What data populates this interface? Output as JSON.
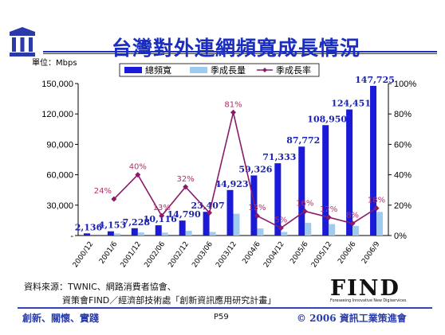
{
  "title": "台灣對外連網頻寬成長情況",
  "unit_label": "單位：Mbps",
  "chart_data": {
    "type": "bar",
    "categories": [
      "2000/12",
      "2001/6",
      "2001/12",
      "2002/06",
      "2002/12",
      "2003/06",
      "2003/12",
      "2004/6",
      "2004/12",
      "2005/6",
      "2005/12",
      "2006/6",
      "2006/9"
    ],
    "series": [
      {
        "name": "總頻寬",
        "kind": "bar",
        "axis": "left",
        "values": [
          2136,
          4153,
          7228,
          10116,
          14790,
          23407,
          44923,
          59326,
          71333,
          87772,
          108950,
          124451,
          147725
        ],
        "labels": [
          "2,136",
          "4,153",
          "7,228",
          "10,116",
          "14,790",
          "23,407",
          "44,923",
          "59,326",
          "71,333",
          "87,772",
          "108,950",
          "124,451",
          "147,725"
        ]
      },
      {
        "name": "季成長量",
        "kind": "bar",
        "axis": "left",
        "values": [
          0,
          2000,
          3000,
          2900,
          4700,
          3500,
          21500,
          7000,
          3500,
          12500,
          11300,
          9500,
          23300
        ]
      },
      {
        "name": "季成長率",
        "kind": "line",
        "axis": "right",
        "values": [
          null,
          24,
          40,
          13,
          32,
          15,
          81,
          13,
          5,
          16,
          12,
          8,
          18
        ],
        "labels": [
          "",
          "24%",
          "40%",
          "13%",
          "32%",
          "",
          "81%",
          "13%",
          "5%",
          "16%",
          "12%",
          "8%",
          "18%"
        ]
      }
    ],
    "ylim": [
      0,
      150000
    ],
    "yticks": [
      "-",
      "30,000",
      "60,000",
      "90,000",
      "120,000",
      "150,000"
    ],
    "y2lim": [
      0,
      100
    ],
    "y2ticks": [
      "0%",
      "20%",
      "40%",
      "60%",
      "80%",
      "100%"
    ],
    "legend_position": "top",
    "colors": {
      "total": "#1a1ad8",
      "growth": "#9fcbef",
      "rate": "#8a1a6a",
      "bar_label": "#1a23b0",
      "rate_label": "#b0306a"
    }
  },
  "source": {
    "line1": "資料來源：TWNIC、網路消費者協會、",
    "line2": "資策會FIND／經濟部技術處「創新資訊應用研究計畫」"
  },
  "find_logo": {
    "word": "FIND",
    "tagline": "Foreseeing Innovative New Digiservices"
  },
  "footer": {
    "left": "創新、關懷、實踐",
    "page": "P59",
    "right": "© 2006 資訊工業策進會"
  }
}
